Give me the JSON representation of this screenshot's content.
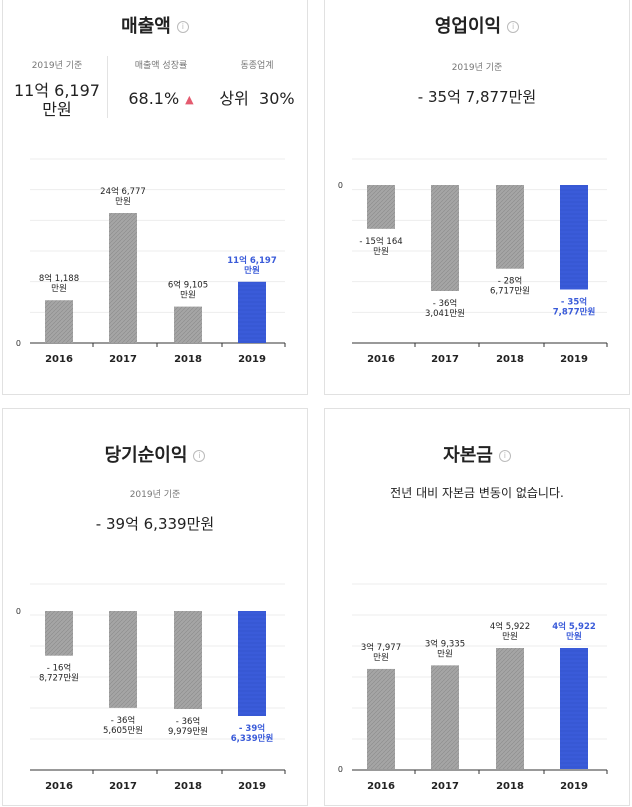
{
  "cards": [
    {
      "title": "매출액",
      "stats": [
        {
          "label": "2019년 기준",
          "value_lines": [
            "11억 6,197",
            "만원"
          ]
        },
        {
          "label": "매출액 성장률",
          "value_lines": [
            "68.1%"
          ],
          "trend": "up"
        },
        {
          "label": "동종업계",
          "value_lines": [
            "상위  30%"
          ]
        }
      ],
      "zero_label": "0"
    },
    {
      "title": "영업이익",
      "subtitle": "2019년 기준",
      "summary": "- 35억 7,877만원",
      "zero_label": "0"
    },
    {
      "title": "당기순이익",
      "subtitle": "2019년 기준",
      "summary": "- 39억 6,339만원",
      "zero_label": "0"
    },
    {
      "title": "자본금",
      "notice": "전년 대비 자본금 변동이 없습니다.",
      "zero_label": "0"
    }
  ],
  "colors": {
    "bar": "#a5a5a5",
    "highlight": "#3a5bd9",
    "grid": "#ededed",
    "axis": "#333333",
    "trend_up": "#e45b6f"
  },
  "chart_data": [
    {
      "type": "bar",
      "title": "매출액",
      "unit": "만원",
      "categories": [
        "2016",
        "2017",
        "2018",
        "2019"
      ],
      "values": [
        81188,
        246777,
        69105,
        116197
      ],
      "labels": [
        [
          "8억 1,188",
          "만원"
        ],
        [
          "24억 6,777",
          "만원"
        ],
        [
          "6억 9,105",
          "만원"
        ],
        [
          "11억 6,197",
          "만원"
        ]
      ],
      "highlight_index": 3,
      "grid": true
    },
    {
      "type": "bar",
      "title": "영업이익",
      "unit": "만원",
      "categories": [
        "2016",
        "2017",
        "2018",
        "2019"
      ],
      "values": [
        -150164,
        -363041,
        -286717,
        -357877
      ],
      "labels": [
        [
          "- 15억 164",
          "만원"
        ],
        [
          "- 36억",
          "3,041만원"
        ],
        [
          "- 28억",
          "6,717만원"
        ],
        [
          "- 35억",
          "7,877만원"
        ]
      ],
      "highlight_index": 3,
      "grid": true
    },
    {
      "type": "bar",
      "title": "당기순이익",
      "unit": "만원",
      "categories": [
        "2016",
        "2017",
        "2018",
        "2019"
      ],
      "values": [
        -168727,
        -365605,
        -369979,
        -396339
      ],
      "labels": [
        [
          "- 16억",
          "8,727만원"
        ],
        [
          "- 36억",
          "5,605만원"
        ],
        [
          "- 36억",
          "9,979만원"
        ],
        [
          "- 39억",
          "6,339만원"
        ]
      ],
      "highlight_index": 3,
      "grid": true
    },
    {
      "type": "bar",
      "title": "자본금",
      "unit": "만원",
      "categories": [
        "2016",
        "2017",
        "2018",
        "2019"
      ],
      "values": [
        37977,
        39335,
        45922,
        45922
      ],
      "labels": [
        [
          "3억 7,977",
          "만원"
        ],
        [
          "3억 9,335",
          "만원"
        ],
        [
          "4억 5,922",
          "만원"
        ],
        [
          "4억 5,922",
          "만원"
        ]
      ],
      "highlight_index": 3,
      "grid": true
    }
  ]
}
